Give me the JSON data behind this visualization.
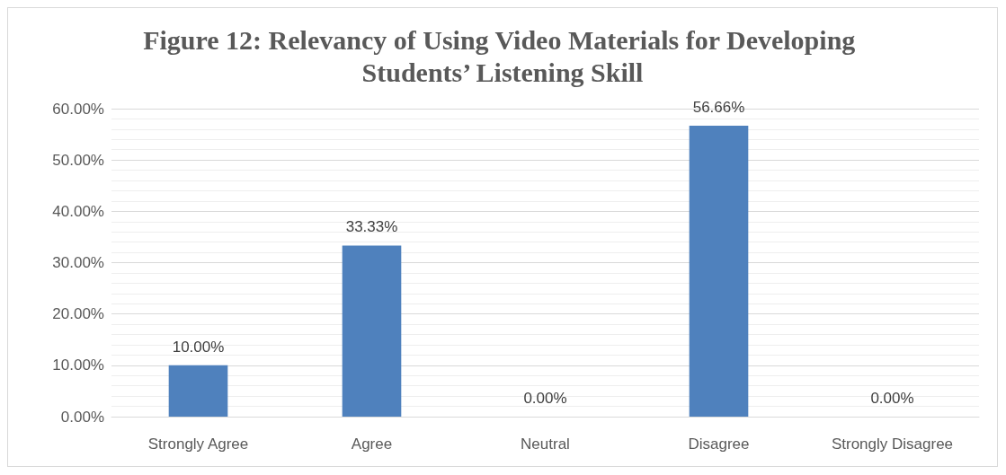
{
  "chart_data": {
    "type": "bar",
    "title": "Figure 12: Relevancy of Using Video Materials for Developing Students’ Listening Skill",
    "categories": [
      "Strongly Agree",
      "Agree",
      "Neutral",
      "Disagree",
      "Strongly Disagree"
    ],
    "values": [
      10,
      33.33,
      0,
      56.66,
      0
    ],
    "color": "#4f81bd",
    "value_labels": [
      "10.00%",
      "33.33%",
      "0.00%",
      "56.66%",
      "0.00%"
    ],
    "ylim": [
      0,
      60
    ],
    "yticks": [
      {
        "value": 0,
        "label": "0.00%"
      },
      {
        "value": 10,
        "label": "10.00%"
      },
      {
        "value": 20,
        "label": "20.00%"
      },
      {
        "value": 30,
        "label": "30.00%"
      },
      {
        "value": 40,
        "label": "40.00%"
      },
      {
        "value": 50,
        "label": "50.00%"
      },
      {
        "value": 60,
        "label": "60.00%"
      }
    ],
    "grid": "y"
  }
}
